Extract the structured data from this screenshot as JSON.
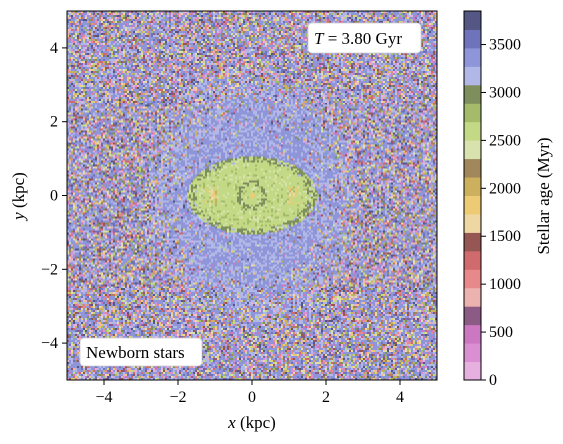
{
  "chart_data": {
    "type": "heatmap",
    "title": "",
    "xlabel": "x (kpc)",
    "ylabel": "y (kpc)",
    "xlim": [
      -5,
      5
    ],
    "ylim": [
      -5,
      5
    ],
    "xticks": [
      -4,
      -2,
      0,
      2,
      4
    ],
    "yticks": [
      -4,
      -2,
      0,
      2,
      4
    ],
    "xtick_labels": [
      "−4",
      "−2",
      "0",
      "2",
      "4"
    ],
    "ytick_labels": [
      "−4",
      "−2",
      "0",
      "2",
      "4"
    ],
    "annotations": {
      "time": {
        "prefix": "T",
        "equals": " = 3.80 Gyr",
        "position": "top-right"
      },
      "population": {
        "text": "Newborn stars",
        "position": "bottom-left"
      }
    },
    "colorbar": {
      "label": "Stellar age (Myr)",
      "vmin": 0,
      "vmax": 3850,
      "ticks": [
        0,
        500,
        1000,
        1500,
        2000,
        2500,
        3000,
        3500
      ],
      "tick_labels": [
        "0",
        "500",
        "1000",
        "1500",
        "2000",
        "2500",
        "3000",
        "3500"
      ],
      "colors": [
        "#e6b1de",
        "#d98fd2",
        "#cb78c1",
        "#8c5b85",
        "#ebb2b0",
        "#e7898a",
        "#cf6b6d",
        "#965654",
        "#eed7a3",
        "#eccb74",
        "#cdb05e",
        "#a1875b",
        "#d8e2ad",
        "#c4d986",
        "#a4bb6a",
        "#7e8e5d",
        "#b1b7e6",
        "#8f95d9",
        "#6f73bb",
        "#545783"
      ]
    },
    "structure": {
      "disk_age_myr": 2600,
      "disk_semi_axes_kpc": [
        1.75,
        1.05
      ],
      "halo_age_myr": 3300,
      "halo_semi_axes_kpc": [
        2.9,
        3.5
      ],
      "background": "mixed ages 0-3850 Myr"
    }
  }
}
